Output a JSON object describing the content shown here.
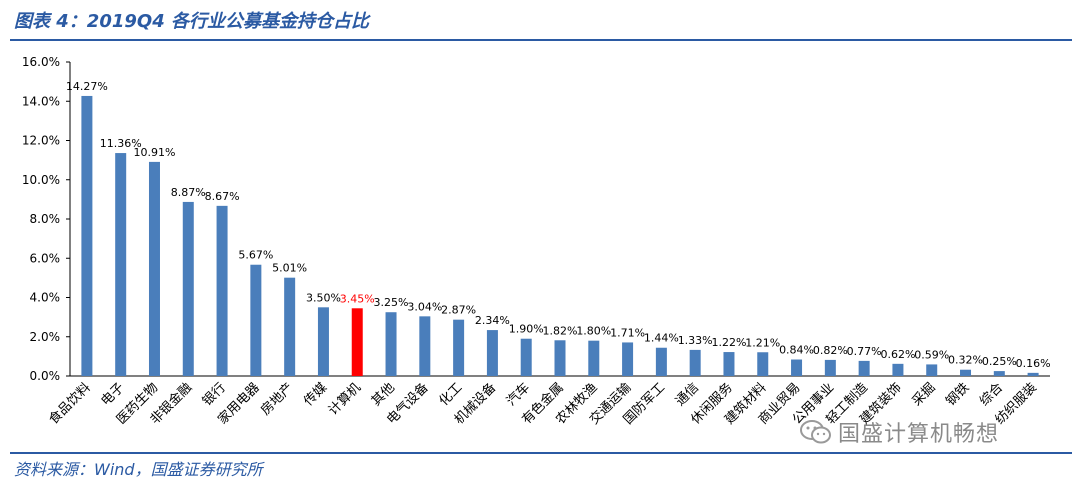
{
  "title": "图表 4：2019Q4 各行业公募基金持仓占比",
  "source": "资料来源：Wind，国盛证券研究所",
  "watermark": "国盛计算机畅想",
  "colors": {
    "bar": "#4a7ebb",
    "highlight": "#ff0000",
    "title": "#2b5aa3"
  },
  "chart_data": {
    "type": "bar",
    "ylim": [
      0,
      16
    ],
    "yticks": [
      "0.0%",
      "2.0%",
      "4.0%",
      "6.0%",
      "8.0%",
      "10.0%",
      "12.0%",
      "14.0%",
      "16.0%"
    ],
    "categories": [
      "食品饮料",
      "电子",
      "医药生物",
      "非银金融",
      "银行",
      "家用电器",
      "房地产",
      "传媒",
      "计算机",
      "其他",
      "电气设备",
      "化工",
      "机械设备",
      "汽车",
      "有色金属",
      "农林牧渔",
      "交通运输",
      "国防军工",
      "通信",
      "休闲服务",
      "建筑材料",
      "商业贸易",
      "公用事业",
      "轻工制造",
      "建筑装饰",
      "采掘",
      "钢铁",
      "综合",
      "纺织服装"
    ],
    "values": [
      14.27,
      11.36,
      10.91,
      8.87,
      8.67,
      5.67,
      5.01,
      3.5,
      3.45,
      3.25,
      3.04,
      2.87,
      2.34,
      1.9,
      1.82,
      1.8,
      1.71,
      1.44,
      1.33,
      1.22,
      1.21,
      0.84,
      0.82,
      0.77,
      0.62,
      0.59,
      0.32,
      0.25,
      0.16
    ],
    "labels": [
      "14.27%",
      "11.36%",
      "10.91%",
      "8.87%",
      "8.67%",
      "5.67%",
      "5.01%",
      "3.50%",
      "3.45%",
      "3.25%",
      "3.04%",
      "2.87%",
      "2.34%",
      "1.90%",
      "1.82%",
      "1.80%",
      "1.71%",
      "1.44%",
      "1.33%",
      "1.22%",
      "1.21%",
      "0.84%",
      "0.82%",
      "0.77%",
      "0.62%",
      "0.59%",
      "0.32%",
      "0.25%",
      "0.16%"
    ],
    "highlight_category": "计算机",
    "grid": false
  }
}
